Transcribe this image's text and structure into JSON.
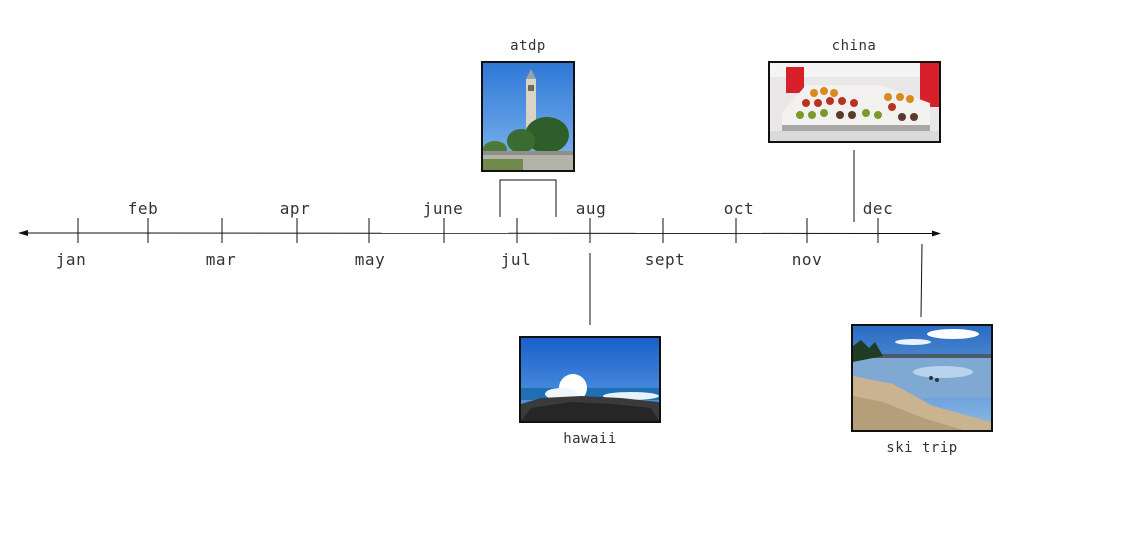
{
  "months": [
    "jan",
    "feb",
    "mar",
    "apr",
    "may",
    "june",
    "jul",
    "aug",
    "sept",
    "oct",
    "nov",
    "dec"
  ],
  "events": {
    "atdp": "atdp",
    "china": "china",
    "hawaii": "hawaii",
    "ski_trip": "ski trip"
  },
  "images": {
    "atdp": "campanile-tower-photo",
    "china": "food-market-stall-photo",
    "hawaii": "ocean-wave-rocks-photo",
    "ski_trip": "lake-shore-beach-photo"
  }
}
